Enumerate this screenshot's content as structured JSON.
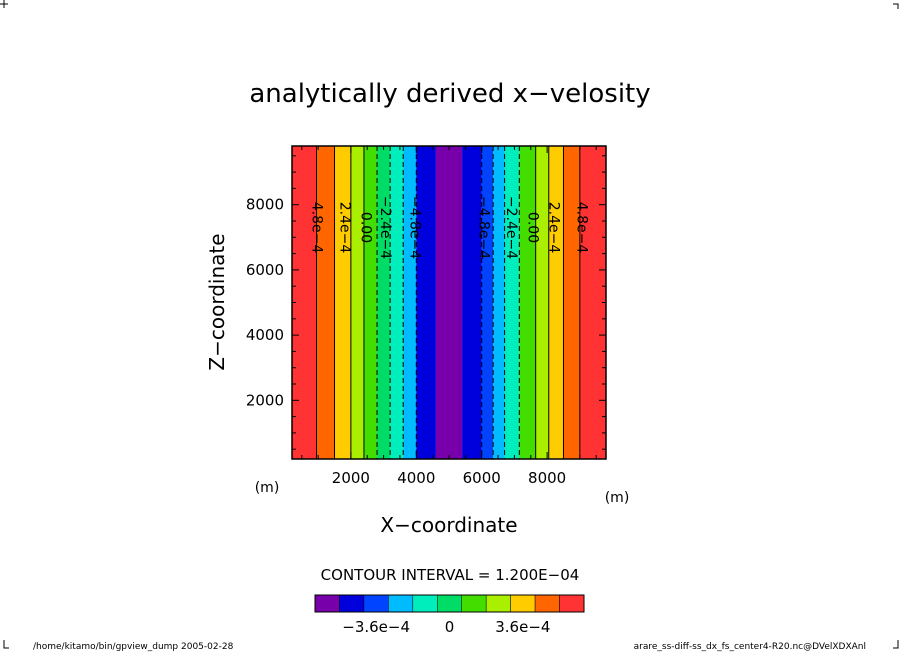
{
  "chart_data": {
    "type": "contour",
    "title": "analytically derived x−velosity",
    "xlabel": "X−coordinate",
    "ylabel": "Z−coordinate",
    "xunit": "(m)",
    "yunit": "(m)",
    "xlim": [
      200,
      9800
    ],
    "ylim": [
      200,
      9800
    ],
    "x_ticks": [
      2000,
      4000,
      6000,
      8000
    ],
    "x_tick_labels": [
      "2000",
      "4000",
      "6000",
      "8000"
    ],
    "y_ticks": [
      2000,
      4000,
      6000,
      8000
    ],
    "y_tick_labels": [
      "2000",
      "4000",
      "6000",
      "8000"
    ],
    "contour_interval_text": "CONTOUR INTERVAL = 1.200E−04",
    "contour_interval": 0.00012,
    "bands": [
      {
        "x_from": 200,
        "x_to": 950,
        "color": "#ff3333"
      },
      {
        "x_from": 950,
        "x_to": 1500,
        "color": "#ff6600"
      },
      {
        "x_from": 1500,
        "x_to": 2000,
        "color": "#ffcc00"
      },
      {
        "x_from": 2000,
        "x_to": 2400,
        "color": "#aaee00"
      },
      {
        "x_from": 2400,
        "x_to": 2800,
        "color": "#44dd00"
      },
      {
        "x_from": 2800,
        "x_to": 3200,
        "color": "#00dd66"
      },
      {
        "x_from": 3200,
        "x_to": 3600,
        "color": "#00eebb"
      },
      {
        "x_from": 3600,
        "x_to": 4000,
        "color": "#00bbff"
      },
      {
        "x_from": 4000,
        "x_to": 4600,
        "color": "#0000dd"
      },
      {
        "x_from": 4600,
        "x_to": 5400,
        "color": "#7700aa"
      },
      {
        "x_from": 5400,
        "x_to": 6000,
        "color": "#0000dd"
      },
      {
        "x_from": 6000,
        "x_to": 6350,
        "color": "#0044ff"
      },
      {
        "x_from": 6350,
        "x_to": 6700,
        "color": "#00bbff"
      },
      {
        "x_from": 6700,
        "x_to": 7150,
        "color": "#00eebb"
      },
      {
        "x_from": 7150,
        "x_to": 7650,
        "color": "#44dd00"
      },
      {
        "x_from": 7650,
        "x_to": 8050,
        "color": "#aaee00"
      },
      {
        "x_from": 8050,
        "x_to": 8500,
        "color": "#ffcc00"
      },
      {
        "x_from": 8500,
        "x_to": 9000,
        "color": "#ff6600"
      },
      {
        "x_from": 9000,
        "x_to": 9800,
        "color": "#ff3333"
      }
    ],
    "contours": [
      {
        "x": 950,
        "dashed": false
      },
      {
        "x": 1500,
        "dashed": false
      },
      {
        "x": 2000,
        "dashed": false
      },
      {
        "x": 2400,
        "dashed": false
      },
      {
        "x": 2800,
        "dashed": true
      },
      {
        "x": 3200,
        "dashed": true
      },
      {
        "x": 3600,
        "dashed": true
      },
      {
        "x": 4000,
        "dashed": true
      },
      {
        "x": 6000,
        "dashed": true
      },
      {
        "x": 6350,
        "dashed": true
      },
      {
        "x": 6700,
        "dashed": true
      },
      {
        "x": 7150,
        "dashed": true
      },
      {
        "x": 7650,
        "dashed": false
      },
      {
        "x": 8050,
        "dashed": false
      },
      {
        "x": 8500,
        "dashed": false
      },
      {
        "x": 9000,
        "dashed": false
      }
    ],
    "contour_labels": [
      {
        "x": 950,
        "text": "4.8e−4"
      },
      {
        "x": 1800,
        "text": "2.4e−4"
      },
      {
        "x": 2450,
        "text": "0.00"
      },
      {
        "x": 3050,
        "text": "−2.4e−4"
      },
      {
        "x": 3950,
        "text": "−4.8e−4"
      },
      {
        "x": 6050,
        "text": "−4.8e−4"
      },
      {
        "x": 6900,
        "text": "−2.4e−4"
      },
      {
        "x": 7550,
        "text": "0.00"
      },
      {
        "x": 8200,
        "text": "2.4e−4"
      },
      {
        "x": 9050,
        "text": "4.8e−4"
      }
    ],
    "contour_label_z": 7300,
    "colorbar": {
      "colors": [
        "#7700aa",
        "#0000dd",
        "#0044ff",
        "#00bbff",
        "#00eebb",
        "#00dd66",
        "#44dd00",
        "#aaee00",
        "#ffcc00",
        "#ff6600",
        "#ff3333"
      ],
      "min": -0.00066,
      "max": 0.00066,
      "tick_values": [
        -0.00036,
        0,
        0.00036
      ],
      "tick_labels": [
        "−3.6e−4",
        "0",
        "3.6e−4"
      ]
    }
  },
  "footer": {
    "left": "/home/kitamo/bin/gpview_dump  2005-02-28",
    "right": "arare_ss-diff-ss_dx_fs_center4-R20.nc@DVelXDXAnl"
  }
}
